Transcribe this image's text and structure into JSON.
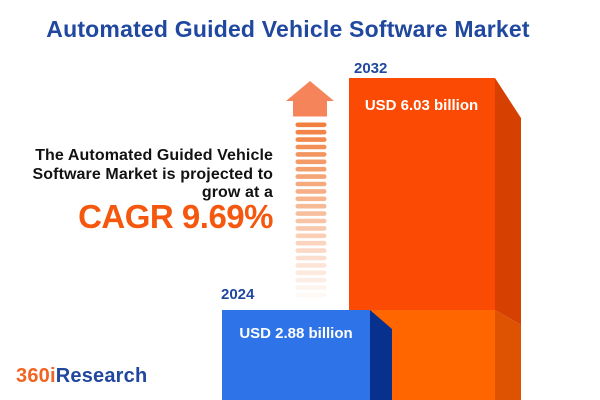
{
  "header": {
    "title": "Automated Guided Vehicle Software Market"
  },
  "tagline": {
    "line1": "The Automated Guided Vehicle",
    "line2": "Software Market is projected to",
    "line3": "grow at a",
    "cagr": "CAGR 9.69%"
  },
  "chart": {
    "bars": [
      {
        "year": "2024",
        "label": "USD 2.88 billion"
      },
      {
        "year": "2032",
        "label": "USD 6.03 billion"
      }
    ]
  },
  "chart_data": {
    "type": "bar",
    "title": "Automated Guided Vehicle Software Market",
    "categories": [
      "2024",
      "2032"
    ],
    "values": [
      2.88,
      6.03
    ],
    "unit": "USD billion",
    "value_labels": [
      "USD 2.88 billion",
      "USD 6.03 billion"
    ],
    "annotations": [
      "The Automated Guided Vehicle Software Market is projected to grow at a CAGR 9.69%"
    ],
    "legend": false,
    "grid": false,
    "style": "3d-isometric-bars, growth arrow between bars, bars anchored to bottom edge"
  },
  "logo": {
    "part1": "360i",
    "part2": "Research"
  },
  "colors": {
    "title_blue": "#21489F",
    "year_blue": "#21489F",
    "tagline_text": "#121212",
    "cagr_orange": "#F4570D",
    "bar2024_front": "#2E73E8",
    "bar2024_side": "#07318C",
    "bar2032_front_top": "#FA4A03",
    "bar2032_front_bottom": "#FF6600",
    "bar2032_side_top": "#D64000",
    "bar2032_side_bottom": "#DD5301",
    "bar_label_white": "#FFFFFF",
    "arrow_head": "#F5845A",
    "arrow_dash": "#F1803F",
    "logo_orange": "#F16522",
    "logo_blue": "#21489E",
    "background": "#FFFFFF"
  },
  "arrow": {
    "x": 295.5,
    "width": 31,
    "dash_height": 4.6,
    "start_y": 122.5,
    "step": 7.4,
    "count": 24,
    "min_opacity": 0.05
  }
}
